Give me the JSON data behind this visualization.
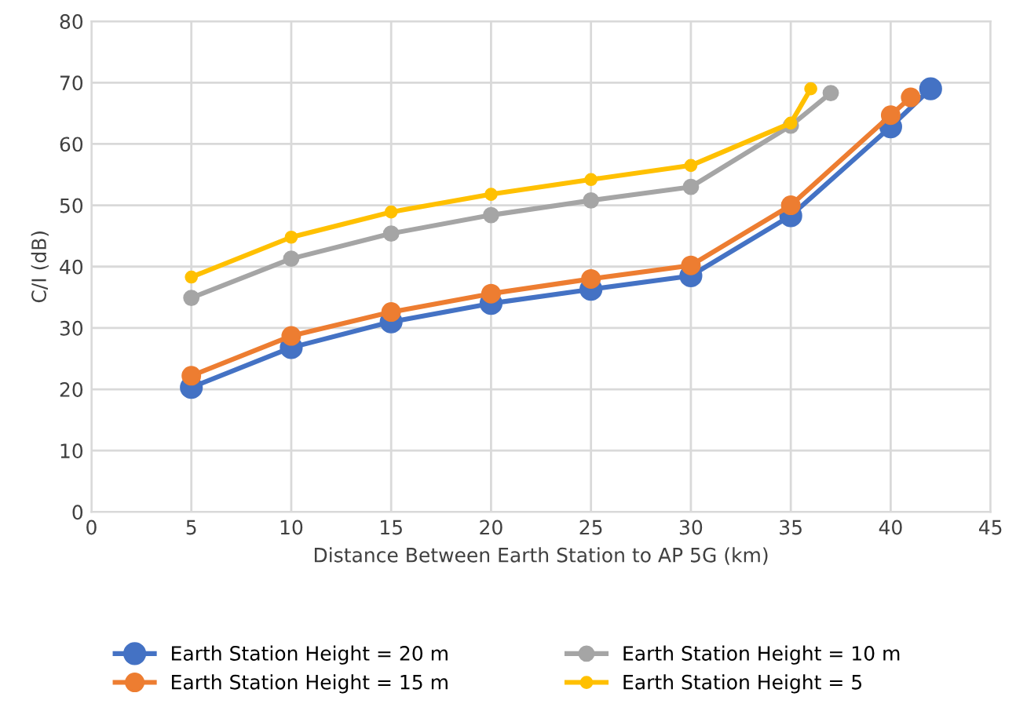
{
  "chart_data": {
    "type": "line",
    "xlabel": "Distance Between Earth Station to AP 5G (km)",
    "ylabel": "C/I (dB)",
    "xlim": [
      0,
      45
    ],
    "xticks": [
      0,
      5,
      10,
      15,
      20,
      25,
      30,
      35,
      40,
      45
    ],
    "ylim": [
      0,
      80
    ],
    "yticks": [
      0,
      10,
      20,
      30,
      40,
      50,
      60,
      70,
      80
    ],
    "grid": true,
    "legend": "bottom",
    "marker": "circle",
    "line_style": "solid",
    "series": [
      {
        "name": "Earth Station Height = 20 m",
        "color": "#4472c4",
        "x": [
          5,
          10,
          15,
          20,
          25,
          30,
          35,
          40,
          42
        ],
        "values": [
          20.3,
          26.8,
          31,
          34,
          36.3,
          38.5,
          48.3,
          62.8,
          69
        ]
      },
      {
        "name": "Earth Station Height = 15 m",
        "color": "#ed7d31",
        "x": [
          5,
          10,
          15,
          20,
          25,
          30,
          35,
          40,
          41
        ],
        "values": [
          22.2,
          28.7,
          32.6,
          35.6,
          38,
          40.2,
          50,
          64.7,
          67.6
        ]
      },
      {
        "name": "Earth Station Height = 10 m",
        "color": "#a5a5a5",
        "x": [
          5,
          10,
          15,
          20,
          25,
          30,
          35,
          37
        ],
        "values": [
          34.9,
          41.3,
          45.4,
          48.4,
          50.8,
          53,
          63,
          68.3
        ]
      },
      {
        "name": "Earth Station Height = 5",
        "color": "#ffc000",
        "x": [
          5,
          10,
          15,
          20,
          25,
          30,
          35,
          36
        ],
        "values": [
          38.3,
          44.8,
          48.9,
          51.8,
          54.2,
          56.5,
          63.4,
          69
        ]
      }
    ]
  }
}
